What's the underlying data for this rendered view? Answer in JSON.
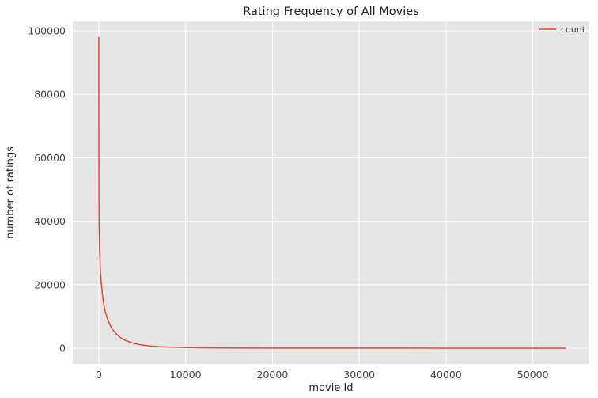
{
  "chart_data": {
    "type": "line",
    "title": "Rating Frequency of All Movies",
    "xlabel": "movie Id",
    "ylabel": "number of ratings",
    "xlim": [
      -3000,
      56500
    ],
    "ylim": [
      -5000,
      103000
    ],
    "xticks": [
      0,
      10000,
      20000,
      30000,
      40000,
      50000
    ],
    "xtick_labels": [
      "0",
      "10000",
      "20000",
      "30000",
      "40000",
      "50000"
    ],
    "yticks": [
      0,
      20000,
      40000,
      60000,
      80000,
      100000
    ],
    "ytick_labels": [
      "0",
      "20000",
      "40000",
      "60000",
      "80000",
      "100000"
    ],
    "grid": true,
    "legend_position": "top-right",
    "series": [
      {
        "name": "count",
        "color": "#E24A33",
        "x": [
          0,
          1,
          3,
          6,
          10,
          15,
          20,
          30,
          40,
          60,
          80,
          100,
          150,
          200,
          300,
          400,
          500,
          700,
          900,
          1200,
          1500,
          2000,
          2500,
          3000,
          4000,
          5000,
          6000,
          7000,
          8000,
          10000,
          12000,
          15000,
          20000,
          25000,
          30000,
          35000,
          40000,
          45000,
          50000,
          53800
        ],
        "y": [
          98000,
          85000,
          72000,
          62000,
          55000,
          50000,
          46000,
          42000,
          39000,
          35000,
          32000,
          29500,
          26000,
          23500,
          20000,
          17500,
          15000,
          12000,
          10000,
          7800,
          6200,
          4500,
          3300,
          2500,
          1500,
          950,
          650,
          450,
          320,
          180,
          110,
          60,
          30,
          15,
          8,
          5,
          3,
          2,
          1,
          1
        ]
      }
    ]
  }
}
